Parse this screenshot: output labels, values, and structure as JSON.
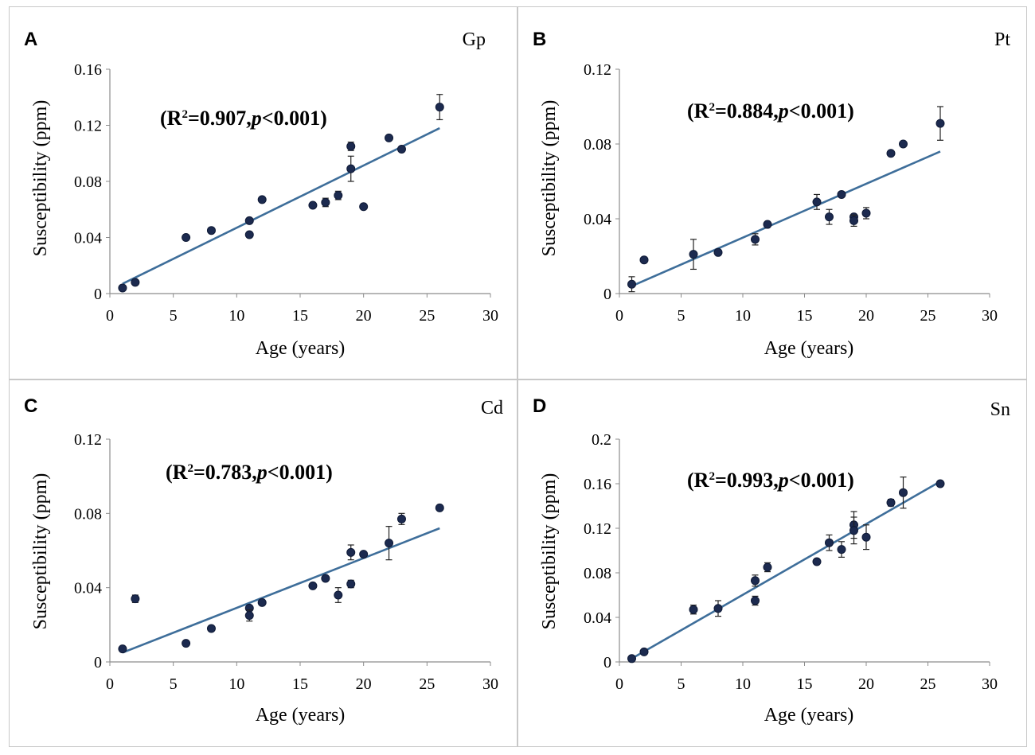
{
  "chart_data": [
    {
      "type": "scatter",
      "panel_label": "A",
      "title": "Gp",
      "xlabel": "Age (years)",
      "ylabel": "Susceptibility (ppm)",
      "xlim": [
        0,
        30
      ],
      "ylim": [
        0,
        0.16
      ],
      "xticks": [
        0,
        5,
        10,
        15,
        20,
        25,
        30
      ],
      "yticks": [
        0,
        0.04,
        0.08,
        0.12,
        0.16
      ],
      "ytick_labels": [
        "0",
        "0.04",
        "0.08",
        "0.12",
        "0.16"
      ],
      "stat": {
        "r2": "0.907",
        "p": "0.001"
      },
      "fit": {
        "x": [
          1,
          26
        ],
        "y": [
          0.007,
          0.118
        ]
      },
      "series": [
        {
          "name": "Gp",
          "points": [
            {
              "x": 1,
              "y": 0.004,
              "err": 0
            },
            {
              "x": 2,
              "y": 0.008,
              "err": 0
            },
            {
              "x": 6,
              "y": 0.04,
              "err": 0
            },
            {
              "x": 8,
              "y": 0.045,
              "err": 0
            },
            {
              "x": 11,
              "y": 0.052,
              "err": 0
            },
            {
              "x": 11,
              "y": 0.042,
              "err": 0
            },
            {
              "x": 12,
              "y": 0.067,
              "err": 0
            },
            {
              "x": 16,
              "y": 0.063,
              "err": 0
            },
            {
              "x": 17,
              "y": 0.065,
              "err": 0.003
            },
            {
              "x": 18,
              "y": 0.07,
              "err": 0.003
            },
            {
              "x": 19,
              "y": 0.105,
              "err": 0.003
            },
            {
              "x": 19,
              "y": 0.089,
              "err": 0.009
            },
            {
              "x": 20,
              "y": 0.062,
              "err": 0
            },
            {
              "x": 22,
              "y": 0.111,
              "err": 0
            },
            {
              "x": 23,
              "y": 0.103,
              "err": 0
            },
            {
              "x": 26,
              "y": 0.133,
              "err": 0.009
            }
          ]
        }
      ]
    },
    {
      "type": "scatter",
      "panel_label": "B",
      "title": "Pt",
      "xlabel": "Age (years)",
      "ylabel": "Susceptibility (ppm)",
      "xlim": [
        0,
        30
      ],
      "ylim": [
        0,
        0.12
      ],
      "xticks": [
        0,
        5,
        10,
        15,
        20,
        25,
        30
      ],
      "yticks": [
        0,
        0.04,
        0.08,
        0.12
      ],
      "ytick_labels": [
        "0",
        "0.04",
        "0.08",
        "0.12"
      ],
      "stat": {
        "r2": "0.884",
        "p": "0.001"
      },
      "fit": {
        "x": [
          1,
          26
        ],
        "y": [
          0.004,
          0.076
        ]
      },
      "series": [
        {
          "name": "Pt",
          "points": [
            {
              "x": 1,
              "y": 0.005,
              "err": 0.004
            },
            {
              "x": 2,
              "y": 0.018,
              "err": 0
            },
            {
              "x": 6,
              "y": 0.021,
              "err": 0.008
            },
            {
              "x": 8,
              "y": 0.022,
              "err": 0
            },
            {
              "x": 11,
              "y": 0.029,
              "err": 0.003
            },
            {
              "x": 12,
              "y": 0.037,
              "err": 0
            },
            {
              "x": 16,
              "y": 0.049,
              "err": 0.004
            },
            {
              "x": 17,
              "y": 0.041,
              "err": 0.004
            },
            {
              "x": 18,
              "y": 0.053,
              "err": 0
            },
            {
              "x": 19,
              "y": 0.041,
              "err": 0
            },
            {
              "x": 19,
              "y": 0.039,
              "err": 0.003
            },
            {
              "x": 20,
              "y": 0.043,
              "err": 0.003
            },
            {
              "x": 22,
              "y": 0.075,
              "err": 0
            },
            {
              "x": 23,
              "y": 0.08,
              "err": 0
            },
            {
              "x": 26,
              "y": 0.091,
              "err": 0.009
            }
          ]
        }
      ]
    },
    {
      "type": "scatter",
      "panel_label": "C",
      "title": "Cd",
      "xlabel": "Age (years)",
      "ylabel": "Susceptibility (ppm)",
      "xlim": [
        0,
        30
      ],
      "ylim": [
        0,
        0.12
      ],
      "xticks": [
        0,
        5,
        10,
        15,
        20,
        25,
        30
      ],
      "yticks": [
        0,
        0.04,
        0.08,
        0.12
      ],
      "ytick_labels": [
        "0",
        "0.04",
        "0.08",
        "0.12"
      ],
      "stat": {
        "r2": "0.783",
        "p": "0.001"
      },
      "fit": {
        "x": [
          1,
          26
        ],
        "y": [
          0.005,
          0.072
        ]
      },
      "series": [
        {
          "name": "Cd",
          "points": [
            {
              "x": 1,
              "y": 0.007,
              "err": 0
            },
            {
              "x": 2,
              "y": 0.034,
              "err": 0.002
            },
            {
              "x": 6,
              "y": 0.01,
              "err": 0
            },
            {
              "x": 8,
              "y": 0.018,
              "err": 0
            },
            {
              "x": 11,
              "y": 0.029,
              "err": 0
            },
            {
              "x": 11,
              "y": 0.025,
              "err": 0.003
            },
            {
              "x": 12,
              "y": 0.032,
              "err": 0
            },
            {
              "x": 16,
              "y": 0.041,
              "err": 0
            },
            {
              "x": 17,
              "y": 0.045,
              "err": 0
            },
            {
              "x": 18,
              "y": 0.036,
              "err": 0.004
            },
            {
              "x": 19,
              "y": 0.059,
              "err": 0.004
            },
            {
              "x": 19,
              "y": 0.042,
              "err": 0.002
            },
            {
              "x": 20,
              "y": 0.058,
              "err": 0
            },
            {
              "x": 22,
              "y": 0.064,
              "err": 0.009
            },
            {
              "x": 23,
              "y": 0.077,
              "err": 0.003
            },
            {
              "x": 26,
              "y": 0.083,
              "err": 0
            }
          ]
        }
      ]
    },
    {
      "type": "scatter",
      "panel_label": "D",
      "title": "Sn",
      "xlabel": "Age (years)",
      "ylabel": "Susceptibility (ppm)",
      "xlim": [
        0,
        30
      ],
      "ylim": [
        0,
        0.2
      ],
      "xticks": [
        0,
        5,
        10,
        15,
        20,
        25,
        30
      ],
      "yticks": [
        0,
        0.04,
        0.08,
        0.12,
        0.16,
        0.2
      ],
      "ytick_labels": [
        "0",
        "0.04",
        "0.08",
        "0.12",
        "0.16",
        "0.2"
      ],
      "stat": {
        "r2": "0.993",
        "p": "0.001"
      },
      "fit": {
        "x": [
          1,
          26
        ],
        "y": [
          0.003,
          0.162
        ]
      },
      "series": [
        {
          "name": "Sn",
          "points": [
            {
              "x": 1,
              "y": 0.003,
              "err": 0
            },
            {
              "x": 2,
              "y": 0.009,
              "err": 0
            },
            {
              "x": 6,
              "y": 0.047,
              "err": 0.004
            },
            {
              "x": 8,
              "y": 0.048,
              "err": 0.007
            },
            {
              "x": 11,
              "y": 0.073,
              "err": 0.005
            },
            {
              "x": 11,
              "y": 0.055,
              "err": 0.004
            },
            {
              "x": 12,
              "y": 0.085,
              "err": 0.004
            },
            {
              "x": 16,
              "y": 0.09,
              "err": 0
            },
            {
              "x": 17,
              "y": 0.107,
              "err": 0.007
            },
            {
              "x": 18,
              "y": 0.101,
              "err": 0.007
            },
            {
              "x": 19,
              "y": 0.123,
              "err": 0.012
            },
            {
              "x": 19,
              "y": 0.118,
              "err": 0.012
            },
            {
              "x": 20,
              "y": 0.112,
              "err": 0.011
            },
            {
              "x": 22,
              "y": 0.143,
              "err": 0.003
            },
            {
              "x": 23,
              "y": 0.152,
              "err": 0.014
            },
            {
              "x": 26,
              "y": 0.16,
              "err": 0
            }
          ]
        }
      ]
    }
  ],
  "style": {
    "point_color": "#1c2a4f",
    "line_color": "#3e6e9a",
    "axis_color": "#8c8c8c"
  }
}
